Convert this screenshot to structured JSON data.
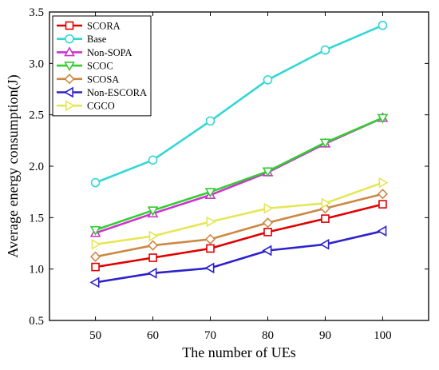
{
  "chart_data": {
    "type": "line",
    "title": "",
    "xlabel": "The number of UEs",
    "ylabel": "Average energy consumption(J)",
    "x": [
      50,
      60,
      70,
      80,
      90,
      100
    ],
    "xlim": [
      42,
      108
    ],
    "ylim": [
      0.5,
      3.5
    ],
    "x_ticks": [
      "50",
      "60",
      "70",
      "80",
      "90",
      "100"
    ],
    "y_ticks": [
      "0.5",
      "1.0",
      "1.5",
      "2.0",
      "2.5",
      "3.0",
      "3.5"
    ],
    "grid": false,
    "legend_position": "top-left",
    "series": [
      {
        "name": "SCORA",
        "color": "#e00000",
        "marker": "square",
        "values": [
          1.02,
          1.11,
          1.2,
          1.36,
          1.49,
          1.63
        ]
      },
      {
        "name": "Base",
        "color": "#33d6d6",
        "marker": "circle",
        "values": [
          1.84,
          2.06,
          2.44,
          2.84,
          3.13,
          3.37
        ]
      },
      {
        "name": "Non-SOPA",
        "color": "#cc33cc",
        "marker": "triangle-up",
        "values": [
          1.35,
          1.54,
          1.72,
          1.94,
          2.22,
          2.47
        ]
      },
      {
        "name": "SCOC",
        "color": "#33cc33",
        "marker": "triangle-down",
        "values": [
          1.38,
          1.57,
          1.75,
          1.95,
          2.23,
          2.47
        ]
      },
      {
        "name": "SCOSA",
        "color": "#cc8844",
        "marker": "diamond",
        "values": [
          1.12,
          1.23,
          1.29,
          1.45,
          1.59,
          1.73
        ]
      },
      {
        "name": "Non-ESCORA",
        "color": "#2e22cc",
        "marker": "triangle-left",
        "values": [
          0.87,
          0.96,
          1.01,
          1.18,
          1.24,
          1.37
        ]
      },
      {
        "name": "CGCO",
        "color": "#e6e655",
        "marker": "triangle-right",
        "values": [
          1.24,
          1.32,
          1.46,
          1.59,
          1.64,
          1.84
        ]
      }
    ]
  }
}
